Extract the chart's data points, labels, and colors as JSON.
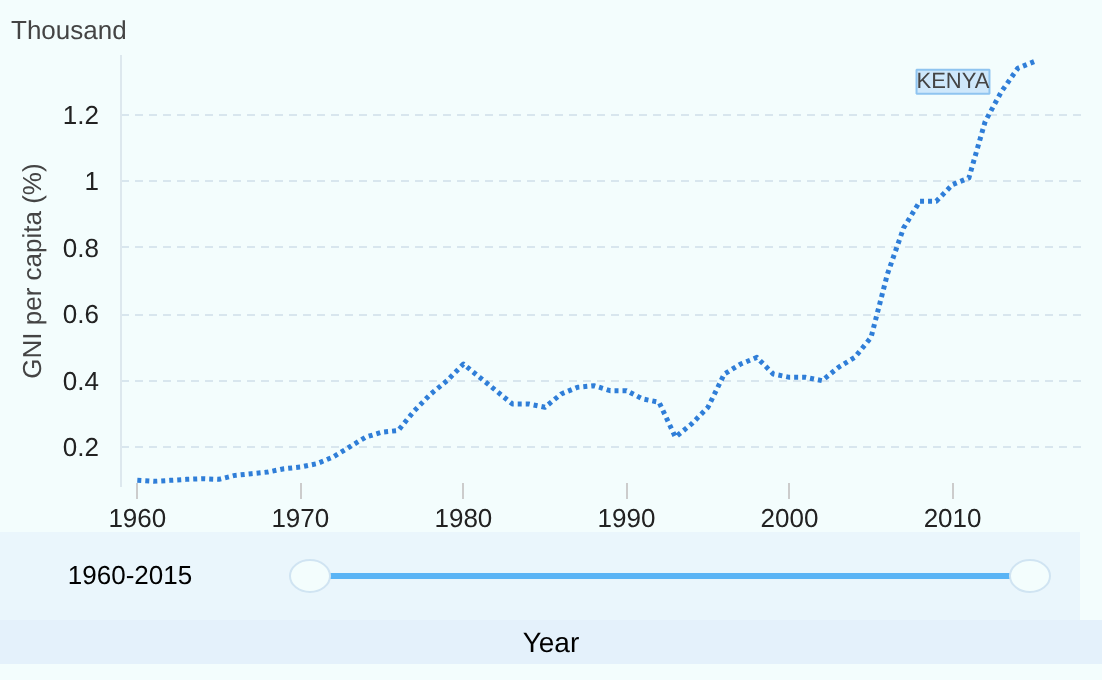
{
  "chart_data": {
    "type": "line",
    "xlabel": "Year",
    "ylabel": "GNI per capita (%)",
    "annotations": [
      "Thousand",
      "1960-2015"
    ],
    "x": [
      1960,
      1961,
      1962,
      1963,
      1964,
      1965,
      1966,
      1967,
      1968,
      1969,
      1970,
      1971,
      1972,
      1973,
      1974,
      1975,
      1976,
      1977,
      1978,
      1979,
      1980,
      1981,
      1982,
      1983,
      1984,
      1985,
      1986,
      1987,
      1988,
      1989,
      1990,
      1991,
      1992,
      1993,
      1994,
      1995,
      1996,
      1997,
      1998,
      1999,
      2000,
      2001,
      2002,
      2003,
      2004,
      2005,
      2006,
      2007,
      2008,
      2009,
      2010,
      2011,
      2012,
      2013,
      2014,
      2015
    ],
    "series": [
      {
        "name": "KENYA",
        "color": "#2f7ed8",
        "values": [
          0.1,
          0.097,
          0.1,
          0.103,
          0.105,
          0.103,
          0.115,
          0.12,
          0.125,
          0.135,
          0.14,
          0.15,
          0.17,
          0.2,
          0.23,
          0.245,
          0.25,
          0.31,
          0.36,
          0.4,
          0.45,
          0.41,
          0.37,
          0.33,
          0.33,
          0.32,
          0.36,
          0.38,
          0.385,
          0.37,
          0.37,
          0.345,
          0.335,
          0.23,
          0.27,
          0.32,
          0.42,
          0.45,
          0.47,
          0.42,
          0.41,
          0.41,
          0.4,
          0.44,
          0.47,
          0.53,
          0.72,
          0.86,
          0.94,
          0.94,
          0.99,
          1.01,
          1.18,
          1.27,
          1.34,
          1.36
        ]
      }
    ],
    "xlim": [
      1959,
      2018
    ],
    "xticks": [
      1960,
      1970,
      1980,
      1990,
      2000,
      2010
    ],
    "ylim": [
      0.08,
      1.38
    ],
    "yticks": [
      0.2,
      0.4,
      0.6,
      0.8,
      1,
      1.2
    ],
    "grid": "y",
    "line_style": "dotted",
    "marker": "none"
  }
}
